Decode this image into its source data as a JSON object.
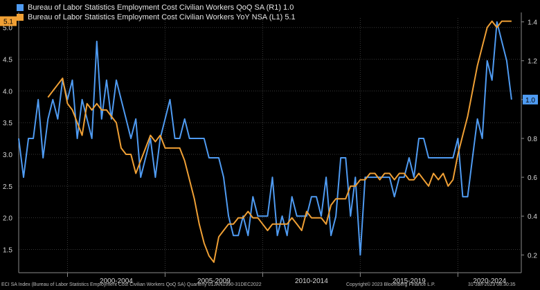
{
  "legend": [
    {
      "label": "Bureau of Labor Statistics Employment Cost Civilian Workers QoQ SA  (R1)  1.0",
      "color": "#4f9bf2"
    },
    {
      "label": "Bureau of Labor Statistics Employment Cost Civilian Workers YoY NSA  (L1)  5.1",
      "color": "#f0a035"
    }
  ],
  "footer": {
    "source": "ECI SA Index (Bureau of Labor Statistics Employment Cost Civilian Workers QoQ SA)  Quarterly 01JAN1990-31DEC2022",
    "copyright": "Copyright© 2023 Bloomberg Finance L.P.",
    "date": "31-Jan-2023 08:30:35"
  },
  "chart_data": {
    "type": "line",
    "x_tick_labels": [
      "2000-2004",
      "2005-2009",
      "2010-2014",
      "2015-2019",
      "2020-2024"
    ],
    "x_range": [
      1997.5,
      2023.25
    ],
    "y_left": {
      "ticks": [
        "1.5",
        "2.0",
        "2.5",
        "3.0",
        "3.5",
        "4.0",
        "4.5",
        "5.0"
      ],
      "range": [
        1.2,
        5.15
      ]
    },
    "y_right": {
      "ticks": [
        "0.2",
        "0.4",
        "0.6",
        "0.8",
        "1.0",
        "1.2",
        "1.4"
      ],
      "range": [
        0.13,
        1.42
      ]
    },
    "last_value_labels": {
      "left": "5.1",
      "right": "1.0"
    },
    "grid": true,
    "series": [
      {
        "name": "Bureau of Labor Statistics Employment Cost Civilian Workers QoQ SA",
        "axis": "right",
        "color": "#4f9bf2",
        "x": [
          1997.5,
          1997.75,
          1998.0,
          1998.25,
          1998.5,
          1998.75,
          1999.0,
          1999.25,
          1999.5,
          1999.75,
          2000.0,
          2000.25,
          2000.5,
          2000.75,
          2001.0,
          2001.25,
          2001.5,
          2001.75,
          2002.0,
          2002.25,
          2002.5,
          2002.75,
          2003.0,
          2003.25,
          2003.5,
          2003.75,
          2004.0,
          2004.25,
          2004.5,
          2004.75,
          2005.0,
          2005.25,
          2005.5,
          2005.75,
          2006.0,
          2006.25,
          2006.5,
          2006.75,
          2007.0,
          2007.25,
          2007.5,
          2007.75,
          2008.0,
          2008.25,
          2008.5,
          2008.75,
          2009.0,
          2009.25,
          2009.5,
          2009.75,
          2010.0,
          2010.25,
          2010.5,
          2010.75,
          2011.0,
          2011.25,
          2011.5,
          2011.75,
          2012.0,
          2012.25,
          2012.5,
          2012.75,
          2013.0,
          2013.25,
          2013.5,
          2013.75,
          2014.0,
          2014.25,
          2014.5,
          2014.75,
          2015.0,
          2015.25,
          2015.5,
          2015.75,
          2016.0,
          2016.25,
          2016.5,
          2016.75,
          2017.0,
          2017.25,
          2017.5,
          2017.75,
          2018.0,
          2018.25,
          2018.5,
          2018.75,
          2019.0,
          2019.25,
          2019.5,
          2019.75,
          2020.0,
          2020.25,
          2020.5,
          2020.75,
          2021.0,
          2021.25,
          2021.5,
          2021.75,
          2022.0,
          2022.25,
          2022.5,
          2022.75
        ],
        "y": [
          0.8,
          0.6,
          0.8,
          0.8,
          1.0,
          0.7,
          0.9,
          1.0,
          0.9,
          1.1,
          1.0,
          1.1,
          0.8,
          1.0,
          0.9,
          0.8,
          1.3,
          0.9,
          1.1,
          0.9,
          1.1,
          1.0,
          0.9,
          0.8,
          0.9,
          0.6,
          0.7,
          0.8,
          0.6,
          0.8,
          0.9,
          1.0,
          0.8,
          0.8,
          0.9,
          0.8,
          0.8,
          0.8,
          0.8,
          0.7,
          0.7,
          0.7,
          0.6,
          0.4,
          0.3,
          0.3,
          0.4,
          0.3,
          0.5,
          0.4,
          0.4,
          0.4,
          0.6,
          0.3,
          0.4,
          0.3,
          0.5,
          0.4,
          0.4,
          0.4,
          0.5,
          0.5,
          0.4,
          0.6,
          0.3,
          0.4,
          0.7,
          0.7,
          0.4,
          0.6,
          0.2,
          0.6,
          0.6,
          0.6,
          0.6,
          0.6,
          0.6,
          0.5,
          0.6,
          0.6,
          0.7,
          0.6,
          0.8,
          0.8,
          0.7,
          0.7,
          0.7,
          0.7,
          0.7,
          0.7,
          0.8,
          0.5,
          0.5,
          0.7,
          0.9,
          0.8,
          1.2,
          1.1,
          1.4,
          1.3,
          1.2,
          1.0
        ]
      },
      {
        "name": "Bureau of Labor Statistics Employment Cost Civilian Workers YoY NSA",
        "axis": "left",
        "color": "#f0a035",
        "x": [
          1999.0,
          1999.25,
          1999.5,
          1999.75,
          2000.0,
          2000.25,
          2000.5,
          2000.75,
          2001.0,
          2001.25,
          2001.5,
          2001.75,
          2002.0,
          2002.25,
          2002.5,
          2002.75,
          2003.0,
          2003.25,
          2003.5,
          2003.75,
          2004.0,
          2004.25,
          2004.5,
          2004.75,
          2005.0,
          2005.25,
          2005.5,
          2005.75,
          2006.0,
          2006.25,
          2006.5,
          2006.75,
          2007.0,
          2007.25,
          2007.5,
          2007.75,
          2008.0,
          2008.25,
          2008.5,
          2008.75,
          2009.0,
          2009.25,
          2009.5,
          2009.75,
          2010.0,
          2010.25,
          2010.5,
          2010.75,
          2011.0,
          2011.25,
          2011.5,
          2011.75,
          2012.0,
          2012.25,
          2012.5,
          2012.75,
          2013.0,
          2013.25,
          2013.5,
          2013.75,
          2014.0,
          2014.25,
          2014.5,
          2014.75,
          2015.0,
          2015.25,
          2015.5,
          2015.75,
          2016.0,
          2016.25,
          2016.5,
          2016.75,
          2017.0,
          2017.25,
          2017.5,
          2017.75,
          2018.0,
          2018.25,
          2018.5,
          2018.75,
          2019.0,
          2019.25,
          2019.5,
          2019.75,
          2020.0,
          2020.25,
          2020.5,
          2020.75,
          2021.0,
          2021.25,
          2021.5,
          2021.75,
          2022.0,
          2022.25,
          2022.5,
          2022.75
        ],
        "y": [
          3.9,
          4.0,
          4.1,
          4.2,
          3.8,
          3.7,
          3.5,
          3.3,
          3.8,
          3.7,
          3.8,
          3.7,
          3.7,
          3.6,
          3.5,
          3.1,
          3.0,
          3.0,
          2.7,
          2.9,
          3.1,
          3.3,
          3.2,
          3.3,
          3.1,
          3.1,
          3.1,
          3.1,
          2.9,
          2.6,
          2.3,
          1.9,
          1.6,
          1.4,
          1.3,
          1.7,
          1.8,
          1.9,
          1.9,
          2.0,
          2.0,
          2.1,
          2.0,
          2.0,
          1.9,
          1.8,
          1.9,
          1.9,
          1.9,
          1.9,
          2.0,
          1.9,
          1.8,
          2.1,
          2.0,
          2.0,
          2.0,
          1.9,
          2.2,
          2.3,
          2.3,
          2.3,
          2.5,
          2.5,
          2.6,
          2.6,
          2.7,
          2.7,
          2.6,
          2.7,
          2.7,
          2.6,
          2.7,
          2.7,
          2.6,
          2.6,
          2.7,
          2.6,
          2.5,
          2.7,
          2.6,
          2.7,
          2.5,
          2.6,
          3.0,
          3.3,
          3.6,
          4.0,
          4.4,
          4.7,
          5.0,
          5.1,
          5.0,
          5.1,
          5.1,
          5.1
        ]
      }
    ]
  }
}
